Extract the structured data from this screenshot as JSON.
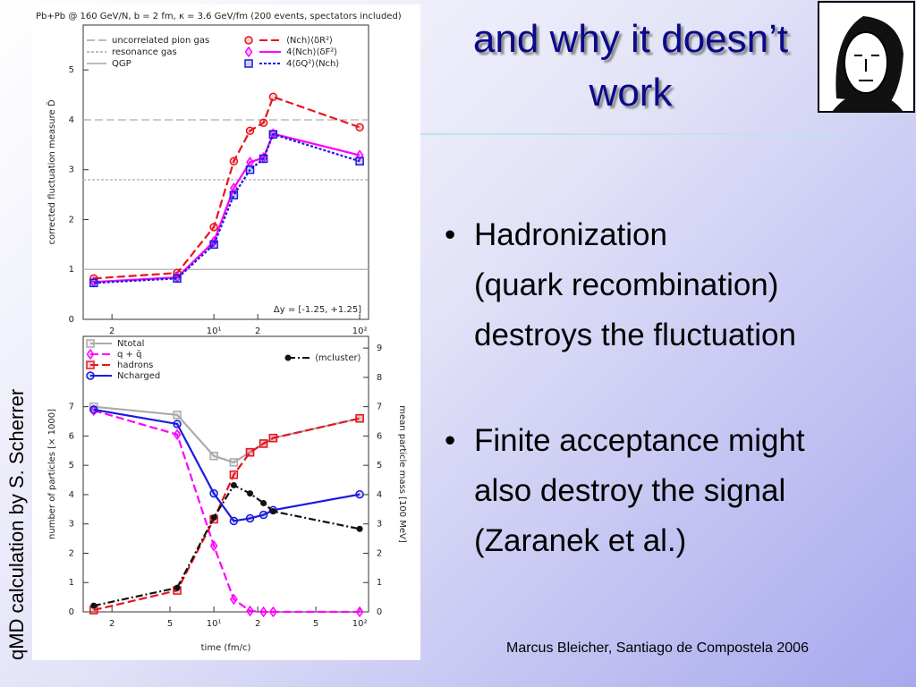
{
  "slide": {
    "title": "and why it doesn’t work",
    "bullets": [
      [
        "Hadronization",
        "(quark recombination)",
        "destroys the fluctuation"
      ],
      [
        "Finite acceptance might",
        "also destroy the signal",
        "(Zaranek et al.)"
      ]
    ],
    "footer": "Marcus Bleicher, Santiago de Compostela 2006",
    "side_label": "qMD calculation by S. Scherrer"
  },
  "chart_data": [
    {
      "type": "line",
      "title": "Pb+Pb @ 160 GeV/N, b = 2 fm, κ = 3.6 GeV/fm (200 events, spectators included)",
      "y_label": "corrected fluctuation measure D̃",
      "annotation": "Δy = [-1.25, +1.25]",
      "log_x": true,
      "xlim": [
        1.27,
        115
      ],
      "xticks": [
        2,
        {
          "value": 10,
          "label": "10¹"
        },
        {
          "value": 20,
          "label": "2"
        },
        {
          "value": 100,
          "label": "10²"
        }
      ],
      "ylim": [
        0,
        5.9
      ],
      "yticks": [
        0,
        1,
        2,
        3,
        4,
        5
      ],
      "x": [
        1.5,
        5.6,
        10,
        13.7,
        17.7,
        21.9,
        25.5,
        100
      ],
      "reference_lines": [
        {
          "name": "uncorrelated pion gas",
          "value": 4,
          "color": "#bbbbbb",
          "dash": "dashed"
        },
        {
          "name": "resonance gas",
          "value": 2.8,
          "color": "#bbbbbb",
          "dash": "dotted"
        },
        {
          "name": "QGP",
          "value": 1,
          "color": "#bbbbbb",
          "dash": "solid"
        }
      ],
      "series": [
        {
          "name": "⟨Nch⟩⟨δR²⟩",
          "color": "#e8141c",
          "dash": "dashed",
          "marker": "circle",
          "values": [
            0.82,
            0.93,
            1.85,
            3.17,
            3.78,
            3.94,
            4.46,
            3.85
          ]
        },
        {
          "name": "4⟨Nch⟩⟨δF²⟩",
          "color": "#ff00ff",
          "dash": "solid",
          "marker": "diamond",
          "values": [
            0.75,
            0.84,
            1.56,
            2.63,
            3.15,
            3.24,
            3.72,
            3.29
          ]
        },
        {
          "name": "4⟨δQ²⟩⟨Nch⟩",
          "color": "#1a1adf",
          "dash": "dotted",
          "marker": "square",
          "values": [
            0.73,
            0.82,
            1.5,
            2.49,
            3.0,
            3.22,
            3.71,
            3.17
          ]
        }
      ]
    },
    {
      "type": "line",
      "x_label": "time (fm/c)",
      "y_label": "number of particles [× 1000]",
      "y2_label": "mean particle mass [100 MeV]",
      "log_x": true,
      "xlim": [
        1.27,
        115
      ],
      "xticks": [
        2,
        5,
        {
          "value": 10,
          "label": "10¹"
        },
        {
          "value": 20,
          "label": "2"
        },
        {
          "value": 50,
          "label": "5"
        },
        {
          "value": 100,
          "label": "10²"
        }
      ],
      "ylim": [
        0,
        9.4
      ],
      "yticks": [
        0,
        1,
        2,
        3,
        4,
        5,
        6,
        7
      ],
      "y2lim": [
        0,
        9.4
      ],
      "y2ticks": [
        0,
        1,
        2,
        3,
        4,
        5,
        6,
        7,
        8,
        9
      ],
      "x": [
        1.5,
        5.6,
        10,
        13.7,
        17.7,
        21.9,
        25.5,
        100
      ],
      "series": [
        {
          "name": "Ntotal",
          "color": "#aaaaaa",
          "dash": "solid",
          "marker": "square",
          "values": [
            7.0,
            6.72,
            5.32,
            5.1,
            5.45,
            5.74,
            5.93,
            6.6
          ]
        },
        {
          "name": "q + q̄",
          "color": "#ff00ff",
          "dash": "dashed",
          "marker": "diamond",
          "values": [
            6.87,
            6.05,
            2.25,
            0.43,
            0.03,
            0,
            0,
            0
          ]
        },
        {
          "name": "hadrons",
          "color": "#e8141c",
          "dash": "dashed",
          "marker": "square",
          "values": [
            0.06,
            0.73,
            3.16,
            4.68,
            5.44,
            5.74,
            5.93,
            6.6
          ]
        },
        {
          "name": "Ncharged",
          "color": "#1a1adf",
          "dash": "solid",
          "marker": "circle",
          "values": [
            6.9,
            6.41,
            4.04,
            3.1,
            3.19,
            3.31,
            3.47,
            4.01
          ]
        },
        {
          "name": "⟨mcluster⟩",
          "color": "#111111",
          "dash": "dashdot",
          "marker": "dot",
          "axis": "y2",
          "values": [
            0.21,
            0.82,
            3.22,
            4.32,
            4.04,
            3.71,
            3.43,
            2.83
          ]
        }
      ]
    }
  ]
}
